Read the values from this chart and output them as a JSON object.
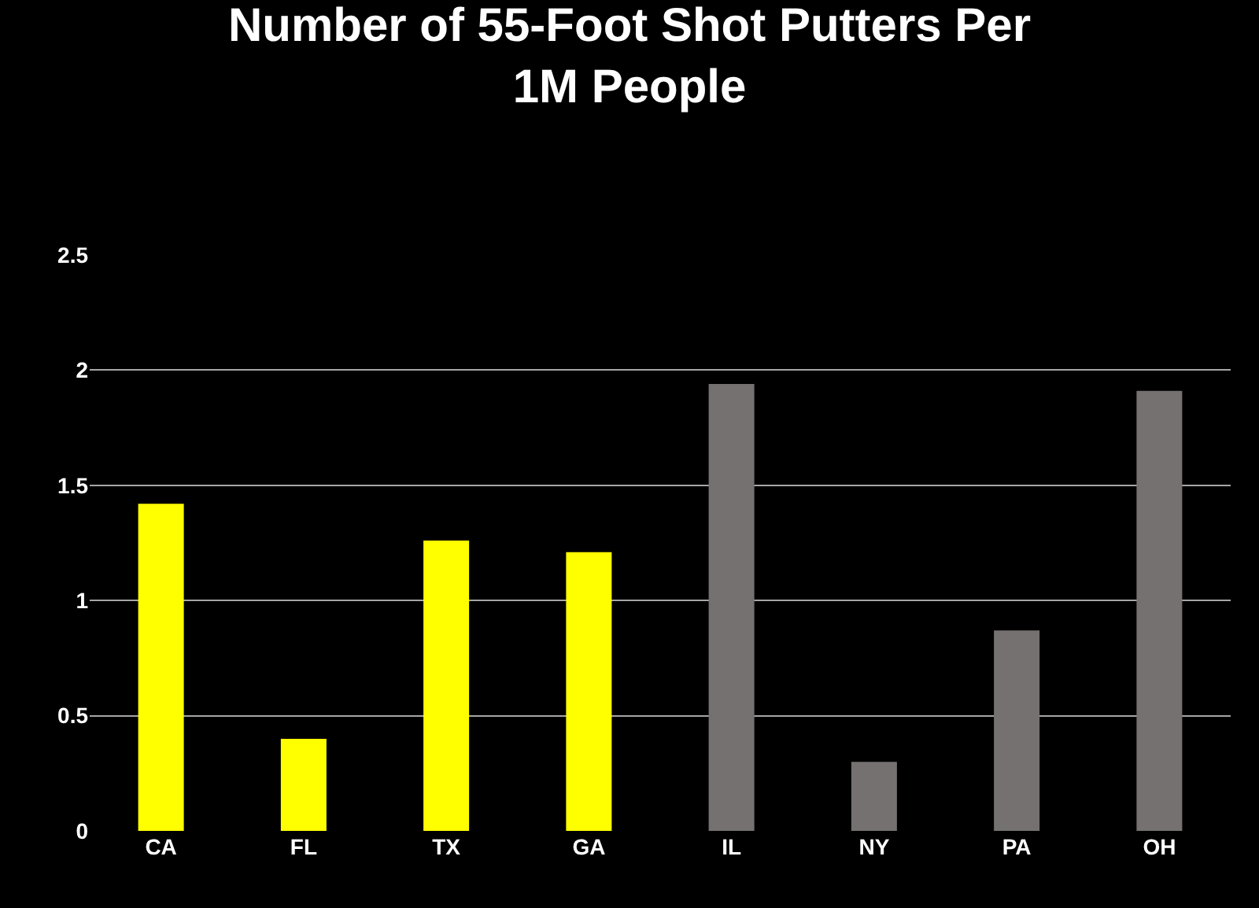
{
  "chart_data": {
    "type": "bar",
    "title": "Number of 55-Foot Shot Putters Per\n1M People",
    "categories": [
      "CA",
      "FL",
      "TX",
      "GA",
      "IL",
      "NY",
      "PA",
      "OH"
    ],
    "values": [
      1.42,
      0.4,
      1.26,
      1.21,
      1.94,
      0.3,
      0.87,
      1.91
    ],
    "colors": [
      "#ffff00",
      "#ffff00",
      "#ffff00",
      "#ffff00",
      "#767171",
      "#767171",
      "#767171",
      "#767171"
    ],
    "ylim": [
      0,
      2.5
    ],
    "yticks": [
      0,
      {
        "value": 0.5,
        "label": "0.5"
      },
      1,
      {
        "value": 1.5,
        "label": "1.5"
      },
      2,
      {
        "value": 2.5,
        "label": "2.5"
      }
    ],
    "grid": "y"
  }
}
